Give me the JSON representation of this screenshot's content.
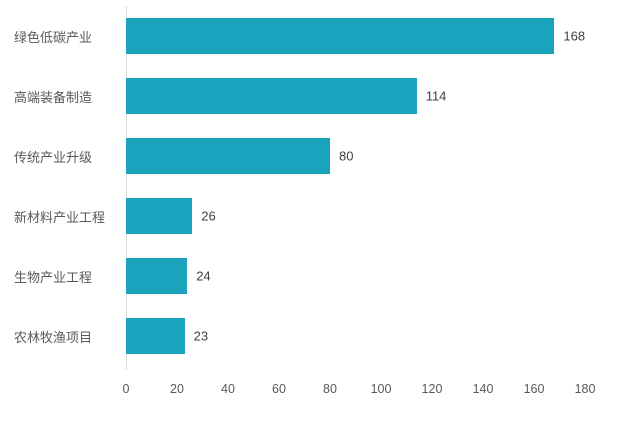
{
  "chart_data": {
    "type": "bar",
    "orientation": "horizontal",
    "title": "",
    "xlabel": "",
    "ylabel": "",
    "categories": [
      "绿色低碳产业",
      "高端装备制造",
      "传统产业升级",
      "新材料产业工程",
      "生物产业工程",
      "农林牧渔项目"
    ],
    "values": [
      168,
      114,
      80,
      26,
      24,
      23
    ],
    "xlim": [
      0,
      180
    ],
    "x_ticks": [
      0,
      20,
      40,
      60,
      80,
      100,
      120,
      140,
      160,
      180
    ],
    "bar_color": "#1aa3bc",
    "label_color": "#595959",
    "value_color": "#404040",
    "axis_line_color": "#d9d9d9",
    "grid": "off",
    "legend": "none"
  }
}
